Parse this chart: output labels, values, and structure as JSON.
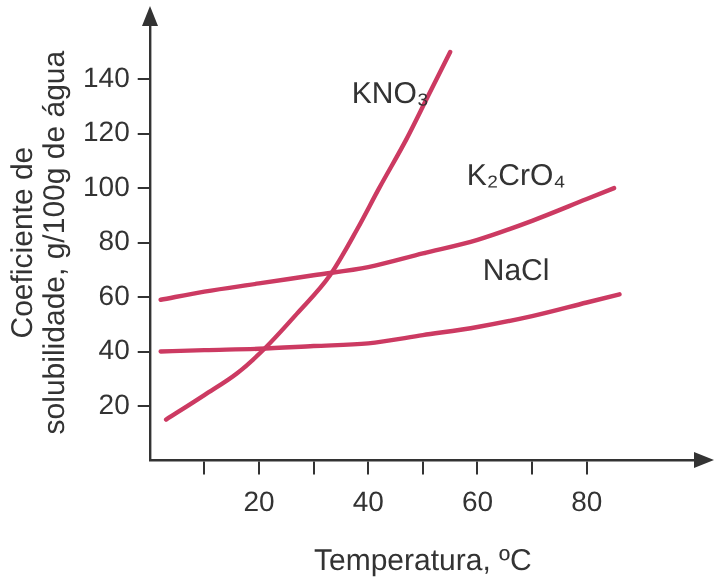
{
  "chart_data": {
    "type": "line",
    "xlabel": "Temperatura, ºC",
    "ylabel": "Coeficiente de\nsolubilidade, g/100g de água",
    "xlim": [
      0,
      100
    ],
    "ylim": [
      0,
      160
    ],
    "xticks": [
      {
        "value": 10,
        "label": null
      },
      20,
      {
        "value": 30,
        "label": null
      },
      40,
      {
        "value": 50,
        "label": null
      },
      60,
      {
        "value": 70,
        "label": null
      },
      80
    ],
    "yticks": [
      20,
      40,
      60,
      80,
      100,
      120,
      140
    ],
    "grid": false,
    "legend": false,
    "marker": "none",
    "line_style": "solid",
    "series": [
      {
        "name": "KNO₃",
        "color": "#cc3a62",
        "x": [
          3,
          10,
          16,
          21,
          27,
          33,
          38,
          42,
          47,
          51,
          55
        ],
        "values": [
          15,
          24,
          32,
          41,
          54,
          68,
          85,
          100,
          118,
          134,
          150
        ]
      },
      {
        "name": "K₂CrO₄",
        "color": "#cc3a62",
        "x": [
          2,
          10,
          20,
          30,
          40,
          50,
          60,
          70,
          80,
          85
        ],
        "values": [
          59,
          62,
          65,
          68,
          71,
          76,
          81,
          88,
          96,
          100
        ]
      },
      {
        "name": "NaCl",
        "color": "#cc3a62",
        "x": [
          2,
          10,
          20,
          30,
          40,
          50,
          60,
          70,
          80,
          86
        ],
        "values": [
          40,
          40.5,
          41,
          42,
          43,
          46,
          49,
          53,
          58,
          61
        ]
      }
    ]
  }
}
